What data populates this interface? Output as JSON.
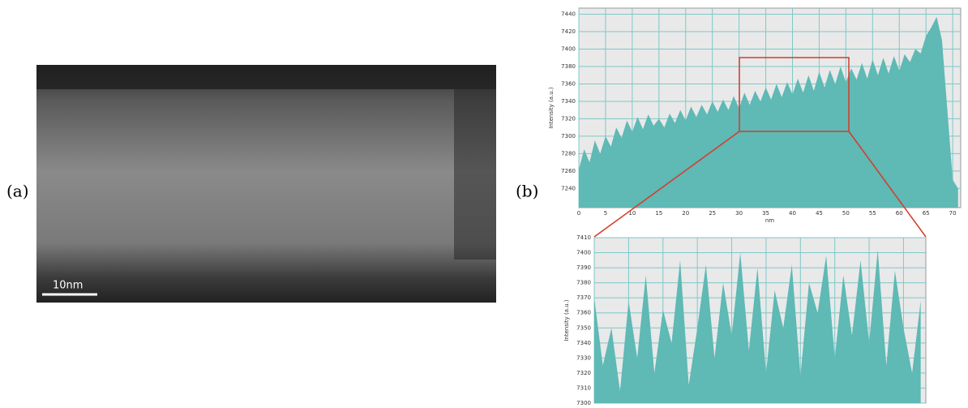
{
  "panel_a": {
    "label": "(a)",
    "scale_bar": "10nm"
  },
  "panel_b": {
    "label": "(b)"
  },
  "chart_data": [
    {
      "type": "area",
      "x_label": "nm",
      "y_label": "Intensity (a.u.)",
      "color": "#5fb9b5",
      "grid": true,
      "x": [
        0,
        1,
        2,
        3,
        4,
        5,
        6,
        7,
        8,
        9,
        10,
        11,
        12,
        13,
        14,
        15,
        16,
        17,
        18,
        19,
        20,
        21,
        22,
        23,
        24,
        25,
        26,
        27,
        28,
        29,
        30,
        31,
        32,
        33,
        34,
        35,
        36,
        37,
        38,
        39,
        40,
        41,
        42,
        43,
        44,
        45,
        46,
        47,
        48,
        49,
        50,
        51,
        52,
        53,
        54,
        55,
        56,
        57,
        58,
        59,
        60,
        61,
        62,
        63,
        64,
        65,
        66,
        67,
        68,
        69,
        70,
        71
      ],
      "values": [
        7262,
        7285,
        7270,
        7295,
        7280,
        7300,
        7288,
        7310,
        7298,
        7318,
        7305,
        7322,
        7308,
        7325,
        7312,
        7320,
        7310,
        7326,
        7315,
        7330,
        7318,
        7334,
        7322,
        7336,
        7325,
        7340,
        7328,
        7342,
        7330,
        7346,
        7332,
        7350,
        7336,
        7352,
        7340,
        7356,
        7342,
        7360,
        7345,
        7362,
        7348,
        7366,
        7350,
        7370,
        7352,
        7374,
        7356,
        7376,
        7360,
        7380,
        7362,
        7378,
        7365,
        7384,
        7366,
        7388,
        7370,
        7390,
        7372,
        7392,
        7375,
        7394,
        7385,
        7400,
        7395,
        7415,
        7425,
        7437,
        7410,
        7330,
        7250,
        7240
      ],
      "xlim": [
        0,
        71.5
      ],
      "xticks": [
        0,
        5,
        10,
        15,
        20,
        25,
        30,
        35,
        40,
        45,
        50,
        55,
        60,
        65,
        70
      ],
      "ylim": [
        7218,
        7447
      ],
      "yticks": [
        7240,
        7260,
        7280,
        7300,
        7320,
        7340,
        7360,
        7380,
        7400,
        7420,
        7440
      ]
    },
    {
      "type": "area",
      "y_label": "Intensity (a.u.)",
      "color": "#5fb9b5",
      "grid": true,
      "x": [
        0,
        0.5,
        1,
        1.5,
        2,
        2.5,
        3,
        3.5,
        4,
        4.5,
        5,
        5.5,
        6,
        6.5,
        7,
        7.5,
        8,
        8.5,
        9,
        9.5,
        10,
        10.5,
        11,
        11.5,
        12,
        12.5,
        13,
        13.5,
        14,
        14.5,
        15,
        15.5,
        16,
        16.5,
        17,
        17.5,
        18,
        18.5,
        19
      ],
      "values": [
        7370,
        7325,
        7350,
        7308,
        7368,
        7330,
        7385,
        7320,
        7362,
        7340,
        7395,
        7312,
        7350,
        7392,
        7330,
        7380,
        7345,
        7400,
        7335,
        7390,
        7320,
        7375,
        7350,
        7392,
        7318,
        7380,
        7360,
        7398,
        7330,
        7385,
        7345,
        7395,
        7340,
        7402,
        7325,
        7388,
        7350,
        7320,
        7368
      ],
      "xlim": [
        0,
        19.3
      ],
      "xticks": [
        0,
        2,
        4,
        6,
        8,
        10,
        12,
        14,
        16,
        18
      ],
      "ylim": [
        7300,
        7410
      ],
      "yticks": [
        7300,
        7310,
        7320,
        7330,
        7340,
        7350,
        7360,
        7370,
        7380,
        7390,
        7400,
        7410
      ]
    }
  ]
}
